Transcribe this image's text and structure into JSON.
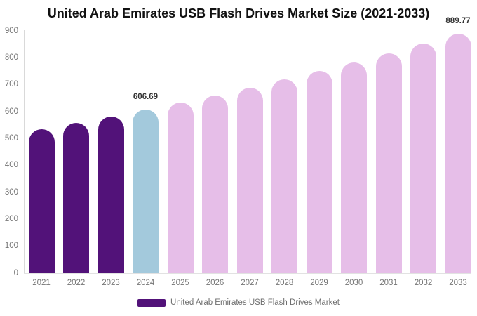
{
  "title": "United Arab Emirates USB Flash Drives Market Size (2021-2033)",
  "legend": {
    "label": "United Arab Emirates USB Flash Drives Market",
    "swatch_color": "#521279"
  },
  "colors": {
    "historical_bar": "#521279",
    "current_year_bar": "#A3C9DC",
    "forecast_bar": "#E6BEE8",
    "axis_text": "#757575",
    "title_text": "#111111",
    "data_label_text": "#333333",
    "axis_line": "#D9D9D9"
  },
  "chart_data": {
    "type": "bar",
    "title": "United Arab Emirates USB Flash Drives Market Size (2021-2033)",
    "categories": [
      "2021",
      "2022",
      "2023",
      "2024",
      "2025",
      "2026",
      "2027",
      "2028",
      "2029",
      "2030",
      "2031",
      "2032",
      "2033"
    ],
    "values": [
      534,
      557.2,
      581.4,
      606.69,
      633.1,
      660.6,
      689.3,
      719.3,
      750.5,
      783.2,
      817.2,
      852.7,
      889.77
    ],
    "bar_colors": [
      "#521279",
      "#521279",
      "#521279",
      "#A3C9DC",
      "#E6BEE8",
      "#E6BEE8",
      "#E6BEE8",
      "#E6BEE8",
      "#E6BEE8",
      "#E6BEE8",
      "#E6BEE8",
      "#E6BEE8",
      "#E6BEE8"
    ],
    "data_labels": [
      "",
      "",
      "",
      "606.69",
      "",
      "",
      "",
      "",
      "",
      "",
      "",
      "",
      "889.77"
    ],
    "xlabel": "",
    "ylabel": "",
    "ylim": [
      0,
      900
    ],
    "yticks": [
      0,
      100,
      200,
      300,
      400,
      500,
      600,
      700,
      800,
      900
    ],
    "grid": false,
    "legend_position": "bottom",
    "legend_entries": [
      "United Arab Emirates USB Flash Drives Market"
    ]
  }
}
